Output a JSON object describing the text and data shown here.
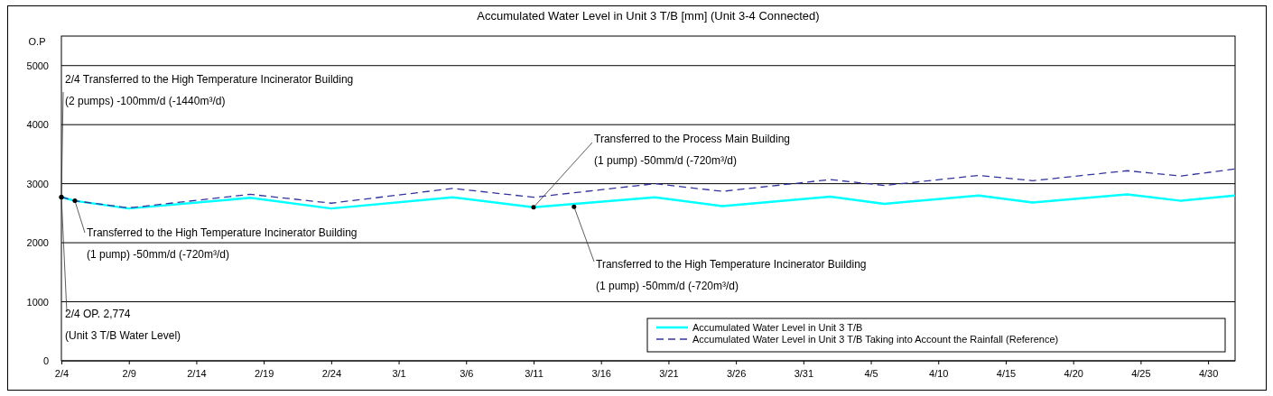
{
  "chart_data": {
    "type": "line",
    "title": "Accumulated Water Level in Unit 3 T/B [mm] (Unit 3-4 Connected)",
    "ylabel": "O.P",
    "xlim": [
      "--02-04",
      "--05-02"
    ],
    "ylim": [
      0,
      5500
    ],
    "xticks": [
      {
        "value": "--02-04",
        "label": "2/4"
      },
      {
        "value": "--02-09",
        "label": "2/9"
      },
      {
        "value": "--02-14",
        "label": "2/14"
      },
      {
        "value": "--02-19",
        "label": "2/19"
      },
      {
        "value": "--02-24",
        "label": "2/24"
      },
      {
        "value": "--03-01",
        "label": "3/1"
      },
      {
        "value": "--03-06",
        "label": "3/6"
      },
      {
        "value": "--03-11",
        "label": "3/11"
      },
      {
        "value": "--03-16",
        "label": "3/16"
      },
      {
        "value": "--03-21",
        "label": "3/21"
      },
      {
        "value": "--03-26",
        "label": "3/26"
      },
      {
        "value": "--03-31",
        "label": "3/31"
      },
      {
        "value": "--04-05",
        "label": "4/5"
      },
      {
        "value": "--04-10",
        "label": "4/10"
      },
      {
        "value": "--04-15",
        "label": "4/15"
      },
      {
        "value": "--04-20",
        "label": "4/20"
      },
      {
        "value": "--04-25",
        "label": "4/25"
      },
      {
        "value": "--04-30",
        "label": "4/30"
      }
    ],
    "yticks": [
      0,
      1000,
      2000,
      3000,
      4000,
      5000
    ],
    "grid": "y",
    "legend": "bottom right",
    "marker": "none",
    "x": [
      "--02-04",
      "--02-05",
      "--02-09",
      "--02-18",
      "--02-24",
      "--03-05",
      "--03-11",
      "--03-20",
      "--03-25",
      "--04-02",
      "--04-06",
      "--04-13",
      "--04-17",
      "--04-24",
      "--04-28",
      "--05-02"
    ],
    "series": [
      {
        "name": "Accumulated Water Level in Unit 3 T/B",
        "color": "#00ffff",
        "line_style": "solid",
        "values": [
          2774,
          2710,
          2580,
          2760,
          2580,
          2770,
          2600,
          2770,
          2620,
          2780,
          2660,
          2800,
          2680,
          2820,
          2710,
          2800
        ]
      },
      {
        "name": "Accumulated Water Level in Unit 3 T/B Taking into Account the Rainfall (Reference)",
        "color": "#333399",
        "line_style": "dashed",
        "values": [
          2774,
          2710,
          2590,
          2820,
          2670,
          2920,
          2770,
          3000,
          2870,
          3070,
          2970,
          3140,
          3050,
          3220,
          3130,
          3250
        ]
      }
    ],
    "annotations": [
      {
        "text": "2/4 Transferred to the High Temperature Incinerator Building\n(2 pumps) -100mm/d (-1440m³/d)",
        "x": "--02-04",
        "y": 2774
      },
      {
        "text": "Transferred to the High Temperature Incinerator Building\n(1 pump) -50mm/d (-720m³/d)",
        "x": "--02-05",
        "y": 2710
      },
      {
        "text": "2/4 OP. 2,774\n(Unit 3 T/B Water Level)",
        "x": "--02-04",
        "y": 2774
      },
      {
        "text": "Transferred to the Process Main Building\n(1 pump) -50mm/d (-720m³/d)",
        "x": "--03-11",
        "y": 2600
      },
      {
        "text": "Transferred to the High Temperature Incinerator Building\n(1 pump) -50mm/d (-720m³/d)",
        "x": "--03-14",
        "y": 2610
      }
    ]
  }
}
